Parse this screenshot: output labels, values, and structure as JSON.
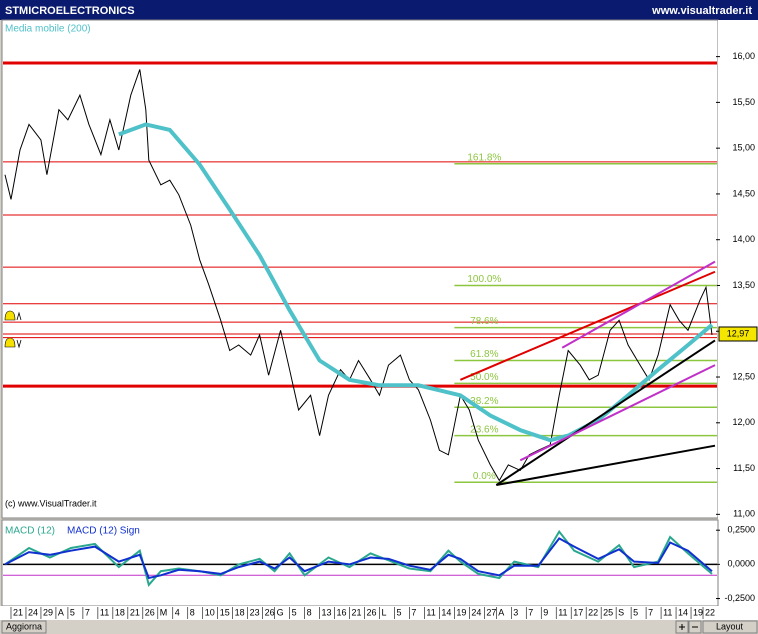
{
  "chart_data": [
    {
      "type": "line",
      "title": "STMICROELECTRONICS",
      "source": "www.visualtrader.it",
      "copyright": "(c) www.VisualTrader.it",
      "xlim": [
        0,
        237
      ],
      "ylim": [
        10.96,
        16.4
      ],
      "yticks": [
        {
          "value": 16,
          "label": "16,00"
        },
        {
          "value": 15.5,
          "label": "15,50"
        },
        {
          "value": 15,
          "label": "15,00"
        },
        {
          "value": 14.5,
          "label": "14,50"
        },
        {
          "value": 14,
          "label": "14,00"
        },
        {
          "value": 13.5,
          "label": "13,50"
        },
        {
          "value": 13,
          "label": "13,00"
        },
        {
          "value": 12.5,
          "label": "12,50"
        },
        {
          "value": 12,
          "label": "12,00"
        },
        {
          "value": 11.5,
          "label": "11,50"
        },
        {
          "value": 11,
          "label": "11,00"
        }
      ],
      "last_price": {
        "value": 12.97,
        "label": "12,97"
      },
      "xticks": [
        {
          "value": 2,
          "label": "21"
        },
        {
          "value": 7,
          "label": "24"
        },
        {
          "value": 12,
          "label": "29"
        },
        {
          "value": 17,
          "label": "A"
        },
        {
          "value": 21,
          "label": "5"
        },
        {
          "value": 26,
          "label": "7"
        },
        {
          "value": 31,
          "label": "11"
        },
        {
          "value": 36,
          "label": "18"
        },
        {
          "value": 41,
          "label": "21"
        },
        {
          "value": 46,
          "label": "26"
        },
        {
          "value": 51,
          "label": "M"
        },
        {
          "value": 56,
          "label": "4"
        },
        {
          "value": 61,
          "label": "8"
        },
        {
          "value": 66,
          "label": "10"
        },
        {
          "value": 71,
          "label": "15"
        },
        {
          "value": 76,
          "label": "18"
        },
        {
          "value": 81,
          "label": "23"
        },
        {
          "value": 86,
          "label": "26"
        },
        {
          "value": 90,
          "label": "G"
        },
        {
          "value": 95,
          "label": "5"
        },
        {
          "value": 100,
          "label": "8"
        },
        {
          "value": 105,
          "label": "13"
        },
        {
          "value": 110,
          "label": "16"
        },
        {
          "value": 115,
          "label": "21"
        },
        {
          "value": 120,
          "label": "26"
        },
        {
          "value": 125,
          "label": "L"
        },
        {
          "value": 130,
          "label": "5"
        },
        {
          "value": 135,
          "label": "7"
        },
        {
          "value": 140,
          "label": "11"
        },
        {
          "value": 145,
          "label": "14"
        },
        {
          "value": 150,
          "label": "19"
        },
        {
          "value": 155,
          "label": "24"
        },
        {
          "value": 160,
          "label": "27"
        },
        {
          "value": 164,
          "label": "A"
        },
        {
          "value": 169,
          "label": "3"
        },
        {
          "value": 174,
          "label": "7"
        },
        {
          "value": 179,
          "label": "9"
        },
        {
          "value": 184,
          "label": "11"
        },
        {
          "value": 189,
          "label": "17"
        },
        {
          "value": 194,
          "label": "22"
        },
        {
          "value": 199,
          "label": "25"
        },
        {
          "value": 204,
          "label": "S"
        },
        {
          "value": 209,
          "label": "5"
        },
        {
          "value": 214,
          "label": "7"
        },
        {
          "value": 219,
          "label": "11"
        },
        {
          "value": 224,
          "label": "14"
        },
        {
          "value": 229,
          "label": "19"
        },
        {
          "value": 233,
          "label": "22"
        }
      ],
      "series": [
        {
          "color": "#000000",
          "x": [
            0,
            2,
            5,
            8,
            12,
            14,
            18,
            21,
            25,
            28,
            32,
            35,
            38,
            42,
            45,
            47,
            48,
            52,
            55,
            58,
            62,
            65,
            68,
            72,
            75,
            78,
            82,
            85,
            88,
            92,
            95,
            98,
            102,
            105,
            108,
            112,
            115,
            118,
            122,
            125,
            128,
            132,
            135,
            138,
            142,
            145,
            148,
            152,
            155,
            158,
            162,
            165,
            168,
            172,
            175,
            178,
            182,
            185,
            188,
            192,
            195,
            198,
            202,
            205,
            208,
            212,
            215,
            218,
            222,
            225,
            228,
            232,
            234,
            236
          ],
          "values": [
            14.71,
            14.44,
            14.98,
            15.26,
            15.09,
            14.71,
            15.42,
            15.31,
            15.58,
            15.26,
            14.93,
            15.31,
            14.98,
            15.58,
            15.86,
            15.42,
            14.87,
            14.6,
            14.65,
            14.49,
            14.16,
            13.78,
            13.51,
            13.12,
            12.79,
            12.85,
            12.74,
            12.96,
            12.52,
            13.01,
            12.58,
            12.14,
            12.3,
            11.86,
            12.3,
            12.58,
            12.47,
            12.68,
            12.47,
            12.3,
            12.63,
            12.74,
            12.47,
            12.36,
            12.03,
            11.7,
            11.65,
            12.3,
            12.14,
            11.81,
            11.54,
            11.37,
            11.54,
            11.48,
            11.65,
            11.7,
            11.76,
            12.3,
            12.79,
            12.63,
            12.47,
            12.52,
            13.01,
            13.12,
            12.85,
            12.63,
            12.47,
            12.74,
            13.29,
            13.12,
            13.01,
            13.34,
            13.48,
            12.96
          ]
        },
        {
          "name": "Media mobile (200)",
          "color": "#4fc1c9",
          "x": [
            38,
            47,
            55,
            65,
            75,
            85,
            95,
            105,
            115,
            125,
            138,
            152,
            162,
            172,
            182,
            188,
            198,
            208,
            218,
            228,
            236
          ],
          "values": [
            15.15,
            15.26,
            15.2,
            14.82,
            14.33,
            13.83,
            13.23,
            12.68,
            12.47,
            12.41,
            12.41,
            12.3,
            12.08,
            11.92,
            11.81,
            11.86,
            12.03,
            12.3,
            12.58,
            12.85,
            13.07
          ]
        }
      ],
      "hlines": [
        {
          "value": 15.93,
          "thick": true
        },
        {
          "value": 14.85,
          "thick": false
        },
        {
          "value": 14.27,
          "thick": false
        },
        {
          "value": 13.7,
          "thick": false
        },
        {
          "value": 13.3,
          "thick": false
        },
        {
          "value": 13.1,
          "thick": false
        },
        {
          "value": 12.97,
          "thick": false
        },
        {
          "value": 12.93,
          "thick": false
        },
        {
          "value": 12.4,
          "thick": true
        }
      ],
      "hline_color": "#e00000",
      "fib_color": "#8cc63f",
      "fib_levels": [
        {
          "value": 14.83,
          "label": "161.8%"
        },
        {
          "value": 13.5,
          "label": "100.0%"
        },
        {
          "value": 13.04,
          "label": "78.6%"
        },
        {
          "value": 12.68,
          "label": "61.8%"
        },
        {
          "value": 12.43,
          "label": "50.0%"
        },
        {
          "value": 12.17,
          "label": "38.2%"
        },
        {
          "value": 11.86,
          "label": "23.6%"
        },
        {
          "value": 11.35,
          "label": "0.0%"
        }
      ],
      "trendlines": [
        {
          "color": "#000000",
          "x": [
            164,
            237
          ],
          "y": [
            11.32,
            11.75
          ]
        },
        {
          "color": "#000000",
          "x": [
            164,
            237
          ],
          "y": [
            11.32,
            12.9
          ]
        },
        {
          "color": "#e00000",
          "x": [
            152,
            237
          ],
          "y": [
            12.47,
            13.65
          ]
        },
        {
          "color": "#c030c8",
          "x": [
            186,
            237
          ],
          "y": [
            12.82,
            13.76
          ]
        },
        {
          "color": "#c030c8",
          "x": [
            172,
            237
          ],
          "y": [
            11.59,
            12.63
          ]
        }
      ]
    },
    {
      "type": "line",
      "xlim": [
        0,
        237
      ],
      "ylim": [
        -0.29,
        0.31
      ],
      "yticks": [
        {
          "value": 0.25,
          "label": "0,2500"
        },
        {
          "value": 0,
          "label": "0,0000"
        },
        {
          "value": -0.25,
          "label": "-0,2500"
        }
      ],
      "hline": {
        "value": -0.08,
        "color": "#c030c8"
      },
      "series": [
        {
          "name": "MACD (12)",
          "color": "#2aa88f",
          "x": [
            0,
            8,
            15,
            22,
            30,
            38,
            45,
            48,
            52,
            58,
            65,
            72,
            78,
            85,
            90,
            95,
            100,
            108,
            115,
            122,
            128,
            135,
            142,
            148,
            152,
            158,
            165,
            170,
            178,
            185,
            190,
            198,
            205,
            210,
            218,
            222,
            228,
            236
          ],
          "values": [
            0.0,
            0.12,
            0.05,
            0.12,
            0.15,
            -0.02,
            0.1,
            -0.15,
            -0.05,
            -0.03,
            -0.05,
            -0.08,
            0.0,
            0.04,
            -0.05,
            0.08,
            -0.08,
            0.05,
            -0.02,
            0.08,
            0.03,
            -0.03,
            -0.05,
            0.1,
            0.02,
            -0.07,
            -0.1,
            0.02,
            -0.02,
            0.24,
            0.1,
            0.02,
            0.14,
            -0.02,
            0.02,
            0.2,
            0.08,
            -0.07
          ]
        },
        {
          "name": "MACD (12) Sign",
          "color": "#1030d0",
          "x": [
            0,
            8,
            15,
            22,
            30,
            38,
            45,
            48,
            52,
            58,
            65,
            72,
            78,
            85,
            90,
            95,
            100,
            108,
            115,
            122,
            128,
            135,
            142,
            148,
            152,
            158,
            165,
            170,
            178,
            185,
            190,
            198,
            205,
            210,
            218,
            222,
            228,
            236
          ],
          "values": [
            0.0,
            0.09,
            0.07,
            0.1,
            0.13,
            0.02,
            0.07,
            -0.1,
            -0.08,
            -0.04,
            -0.05,
            -0.07,
            -0.02,
            0.02,
            -0.03,
            0.05,
            -0.05,
            0.02,
            0.0,
            0.05,
            0.04,
            -0.01,
            -0.04,
            0.07,
            0.04,
            -0.05,
            -0.08,
            -0.01,
            -0.01,
            0.19,
            0.13,
            0.04,
            0.11,
            0.02,
            0.01,
            0.16,
            0.1,
            -0.05
          ]
        }
      ]
    }
  ],
  "ui": {
    "buttons": [
      "Aggiorna",
      "Layout"
    ]
  }
}
